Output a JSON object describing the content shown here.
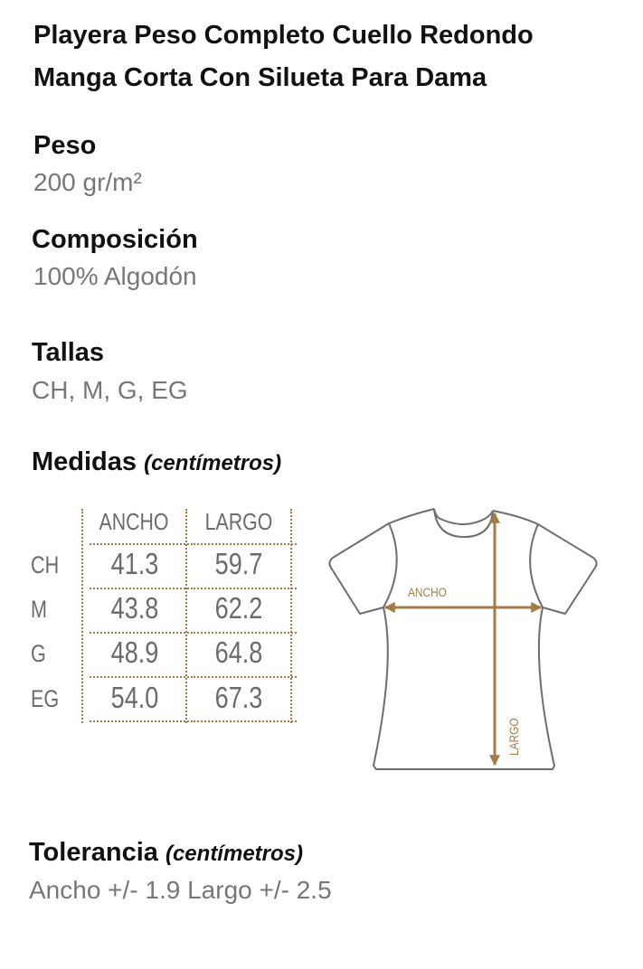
{
  "title": {
    "line1": "Playera Peso Completo Cuello Redondo",
    "line2": "Manga Corta Con Silueta Para Dama"
  },
  "peso": {
    "label": "Peso",
    "value": "200 gr/m²"
  },
  "composicion": {
    "label": "Composición",
    "value": "100% Algodón"
  },
  "tallas": {
    "label": "Tallas",
    "value": "CH, M, G, EG"
  },
  "medidas": {
    "label": "Medidas",
    "unit": "(centímetros)",
    "columns": [
      "ANCHO",
      "LARGO"
    ],
    "rows": [
      {
        "size": "CH",
        "ancho": "41.3",
        "largo": "59.7"
      },
      {
        "size": "M",
        "ancho": "43.8",
        "largo": "62.2"
      },
      {
        "size": "G",
        "ancho": "48.9",
        "largo": "64.8"
      },
      {
        "size": "EG",
        "ancho": "54.0",
        "largo": "67.3"
      }
    ]
  },
  "diagram": {
    "ancho_label": "ANCHO",
    "largo_label": "LARGO",
    "accent_color": "#a57c45",
    "outline_color": "#6e6e6e"
  },
  "tolerancia": {
    "label": "Tolerancia",
    "unit": "(centímetros)",
    "value": "Ancho +/- 1.9 Largo +/- 2.5"
  }
}
